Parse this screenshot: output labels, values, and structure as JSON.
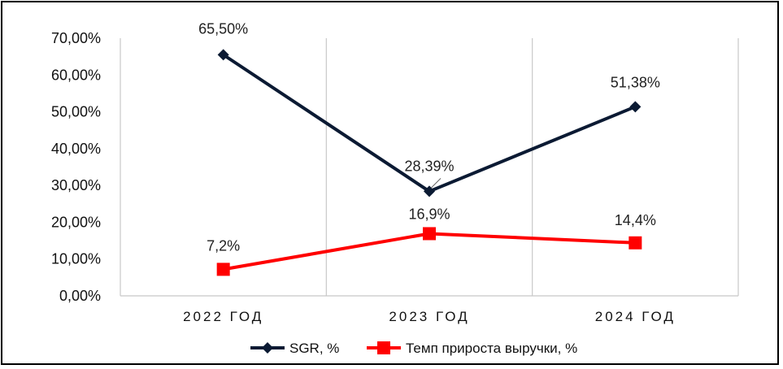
{
  "chart_data": {
    "type": "line",
    "categories": [
      "2022 ГОД",
      "2023 ГОД",
      "2024 ГОД"
    ],
    "ylim": [
      0,
      70
    ],
    "yticks": [
      0,
      10,
      20,
      30,
      40,
      50,
      60,
      70
    ],
    "ytick_labels": [
      "0,00%",
      "10,00%",
      "20,00%",
      "30,00%",
      "40,00%",
      "50,00%",
      "60,00%",
      "70,00%"
    ],
    "grid": "vertical",
    "legend_position": "bottom",
    "series": [
      {
        "name": "SGR, %",
        "values": [
          65.5,
          28.39,
          51.38
        ],
        "labels": [
          "65,50%",
          "28,39%",
          "51,38%"
        ],
        "color": "#0b1a33",
        "marker": "diamond"
      },
      {
        "name": "Темп прироста выручки, %",
        "values": [
          7.2,
          16.9,
          14.4
        ],
        "labels": [
          "7,2%",
          "16,9%",
          "14,4%"
        ],
        "color": "#ff0000",
        "marker": "square"
      }
    ]
  }
}
